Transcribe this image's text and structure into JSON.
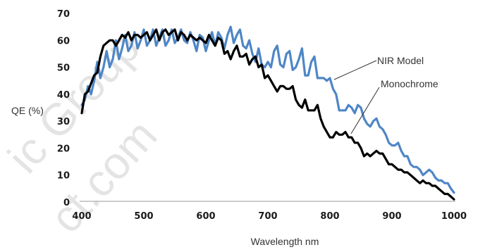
{
  "chart_data": {
    "type": "line",
    "title": "",
    "xlabel": "Wavelength nm",
    "ylabel": "QE (%)",
    "xlim": [
      400,
      1000
    ],
    "ylim": [
      0,
      70
    ],
    "x_ticks": [
      400,
      500,
      600,
      700,
      800,
      900,
      1000
    ],
    "y_ticks": [
      0,
      10,
      20,
      30,
      40,
      50,
      60,
      70
    ],
    "grid": false,
    "series": [
      {
        "name": "NIR Model",
        "color": "#4f86c6",
        "x": [
          400,
          405,
          410,
          415,
          420,
          425,
          430,
          435,
          440,
          445,
          450,
          455,
          460,
          465,
          470,
          475,
          480,
          485,
          490,
          495,
          500,
          505,
          510,
          515,
          520,
          525,
          530,
          535,
          540,
          545,
          550,
          555,
          560,
          565,
          570,
          575,
          580,
          585,
          590,
          595,
          600,
          605,
          610,
          615,
          620,
          625,
          630,
          635,
          640,
          645,
          650,
          655,
          660,
          665,
          670,
          675,
          680,
          685,
          690,
          695,
          700,
          705,
          710,
          715,
          720,
          725,
          730,
          735,
          740,
          745,
          750,
          755,
          760,
          765,
          770,
          775,
          780,
          785,
          790,
          795,
          800,
          805,
          810,
          815,
          820,
          825,
          830,
          835,
          840,
          845,
          850,
          855,
          860,
          865,
          870,
          875,
          880,
          885,
          890,
          895,
          900,
          905,
          910,
          915,
          920,
          925,
          930,
          935,
          940,
          945,
          950,
          955,
          960,
          965,
          970,
          975,
          980,
          985,
          990,
          995,
          1000
        ],
        "values": [
          36,
          38,
          43,
          40,
          45,
          52,
          46,
          50,
          56,
          50,
          53,
          60,
          53,
          57,
          62,
          56,
          58,
          63,
          57,
          60,
          64,
          58,
          60,
          64,
          58,
          61,
          64,
          58,
          60,
          64,
          59,
          61,
          64,
          60,
          59,
          63,
          60,
          56,
          62,
          61,
          56,
          60,
          63,
          58,
          63,
          61,
          57,
          62,
          65,
          59,
          62,
          64,
          58,
          57,
          60,
          55,
          52,
          57,
          51,
          50,
          52,
          50,
          56,
          58,
          51,
          50,
          55,
          56,
          49,
          50,
          53,
          57,
          47,
          47,
          52,
          54,
          46,
          46,
          46,
          45,
          46,
          42,
          40,
          34,
          34,
          34,
          36,
          35,
          33,
          36,
          35,
          31,
          29,
          28,
          30,
          31,
          28,
          27,
          25,
          22,
          21,
          21,
          22,
          19,
          17,
          17,
          14,
          13,
          13,
          12,
          10,
          11,
          12,
          11,
          9,
          8,
          8,
          7,
          7,
          5,
          3.5
        ]
      },
      {
        "name": "Monochrome",
        "color": "#000000",
        "x": [
          400,
          405,
          410,
          415,
          420,
          425,
          430,
          435,
          440,
          445,
          450,
          455,
          460,
          465,
          470,
          475,
          480,
          485,
          490,
          495,
          500,
          505,
          510,
          515,
          520,
          525,
          530,
          535,
          540,
          545,
          550,
          555,
          560,
          565,
          570,
          575,
          580,
          585,
          590,
          595,
          600,
          605,
          610,
          615,
          620,
          625,
          630,
          635,
          640,
          645,
          650,
          655,
          660,
          665,
          670,
          675,
          680,
          685,
          690,
          695,
          700,
          705,
          710,
          715,
          720,
          725,
          730,
          735,
          740,
          745,
          750,
          755,
          760,
          765,
          770,
          775,
          780,
          785,
          790,
          795,
          800,
          805,
          810,
          815,
          820,
          825,
          830,
          835,
          840,
          845,
          850,
          855,
          860,
          865,
          870,
          875,
          880,
          885,
          890,
          895,
          900,
          905,
          910,
          915,
          920,
          925,
          930,
          935,
          940,
          945,
          950,
          955,
          960,
          965,
          970,
          975,
          980,
          985,
          990,
          995,
          1000
        ],
        "values": [
          33,
          40,
          41,
          44,
          47,
          48,
          54,
          58,
          59,
          60,
          60,
          58,
          60,
          62,
          61,
          63,
          60,
          62,
          62,
          61,
          62,
          63,
          60,
          62,
          64,
          60,
          63,
          64,
          62,
          63,
          64,
          60,
          63,
          62,
          60,
          62,
          61,
          60,
          61,
          60,
          59,
          62,
          60,
          58,
          61,
          60,
          55,
          56,
          53,
          56,
          58,
          54,
          54,
          55,
          51,
          53,
          54,
          50,
          51,
          46,
          47,
          45,
          43,
          41,
          43,
          43,
          42,
          42,
          43,
          38,
          36,
          35,
          38,
          34,
          34,
          34,
          36,
          31,
          28,
          26,
          24,
          24,
          26,
          25,
          25,
          26,
          24,
          24,
          22,
          22,
          20,
          17,
          18,
          17,
          18,
          19,
          18,
          18,
          16,
          14,
          14,
          13,
          12,
          12,
          11,
          11,
          10,
          9,
          8,
          7,
          8,
          7,
          7,
          6,
          6,
          5,
          4,
          3,
          3,
          2,
          1
        ]
      }
    ],
    "annotations": [
      {
        "text": "NIR Model",
        "series": "NIR Model"
      },
      {
        "text": "Monochrome",
        "series": "Monochrome"
      }
    ]
  },
  "watermark": [
    "ic Group",
    "ct.com"
  ]
}
